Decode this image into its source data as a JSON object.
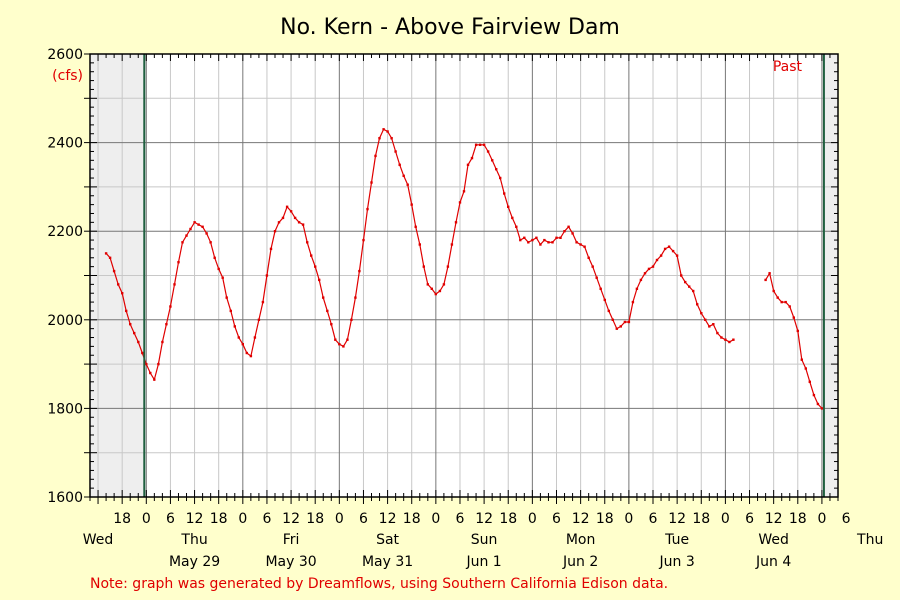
{
  "chart_data": {
    "type": "line",
    "title": "No. Kern - Above Fairview Dam",
    "ylabel": "(cfs)",
    "ylim": [
      1600,
      2600
    ],
    "y_ticks": [
      1600,
      1800,
      2000,
      2200,
      2400,
      2600
    ],
    "grid": true,
    "past_label": "Past",
    "x_tick_labels": [
      "18",
      "0",
      "6",
      "12",
      "18",
      "0",
      "6",
      "12",
      "18",
      "0",
      "6",
      "12",
      "18",
      "0",
      "6",
      "12",
      "18",
      "0",
      "6",
      "12",
      "18",
      "0",
      "6",
      "12",
      "18",
      "0",
      "6",
      "12",
      "18",
      "0",
      "6"
    ],
    "day_labels": [
      "Wed",
      "Thu",
      "Fri",
      "Sat",
      "Sun",
      "Mon",
      "Tue",
      "Wed",
      "Thu"
    ],
    "date_labels": [
      "May 29",
      "May 30",
      "May 31",
      "Jun 1",
      "Jun 2",
      "Jun 3",
      "Jun 4"
    ],
    "series": [
      {
        "color": "#e00000",
        "points": [
          [
            -10,
            2150
          ],
          [
            -9,
            2140
          ],
          [
            -8,
            2110
          ],
          [
            -7,
            2080
          ],
          [
            -6,
            2060
          ],
          [
            -5,
            2020
          ],
          [
            -4,
            1990
          ],
          [
            -3,
            1970
          ],
          [
            -2,
            1950
          ],
          [
            -1,
            1925
          ],
          [
            0,
            1900
          ],
          [
            1,
            1880
          ],
          [
            2,
            1865
          ],
          [
            3,
            1900
          ],
          [
            4,
            1950
          ],
          [
            5,
            1990
          ],
          [
            6,
            2030
          ],
          [
            7,
            2080
          ],
          [
            8,
            2130
          ],
          [
            9,
            2175
          ],
          [
            10,
            2190
          ],
          [
            11,
            2205
          ],
          [
            12,
            2220
          ],
          [
            13,
            2215
          ],
          [
            14,
            2210
          ],
          [
            15,
            2195
          ],
          [
            16,
            2175
          ],
          [
            17,
            2140
          ],
          [
            18,
            2115
          ],
          [
            19,
            2095
          ],
          [
            20,
            2050
          ],
          [
            21,
            2020
          ],
          [
            22,
            1985
          ],
          [
            23,
            1960
          ],
          [
            24,
            1945
          ],
          [
            25,
            1925
          ],
          [
            26,
            1918
          ],
          [
            27,
            1960
          ],
          [
            28,
            2000
          ],
          [
            29,
            2040
          ],
          [
            30,
            2100
          ],
          [
            31,
            2160
          ],
          [
            32,
            2200
          ],
          [
            33,
            2220
          ],
          [
            34,
            2230
          ],
          [
            35,
            2255
          ],
          [
            36,
            2245
          ],
          [
            37,
            2230
          ],
          [
            38,
            2220
          ],
          [
            39,
            2215
          ],
          [
            40,
            2175
          ],
          [
            41,
            2145
          ],
          [
            42,
            2120
          ],
          [
            43,
            2090
          ],
          [
            44,
            2050
          ],
          [
            45,
            2020
          ],
          [
            46,
            1990
          ],
          [
            47,
            1955
          ],
          [
            48,
            1945
          ],
          [
            49,
            1940
          ],
          [
            50,
            1955
          ],
          [
            51,
            2000
          ],
          [
            52,
            2050
          ],
          [
            53,
            2110
          ],
          [
            54,
            2180
          ],
          [
            55,
            2250
          ],
          [
            56,
            2310
          ],
          [
            57,
            2370
          ],
          [
            58,
            2410
          ],
          [
            59,
            2430
          ],
          [
            60,
            2425
          ],
          [
            61,
            2410
          ],
          [
            62,
            2380
          ],
          [
            63,
            2350
          ],
          [
            64,
            2325
          ],
          [
            65,
            2305
          ],
          [
            66,
            2260
          ],
          [
            67,
            2210
          ],
          [
            68,
            2170
          ],
          [
            69,
            2120
          ],
          [
            70,
            2080
          ],
          [
            71,
            2070
          ],
          [
            72,
            2058
          ],
          [
            73,
            2065
          ],
          [
            74,
            2080
          ],
          [
            75,
            2120
          ],
          [
            76,
            2170
          ],
          [
            77,
            2220
          ],
          [
            78,
            2265
          ],
          [
            79,
            2290
          ],
          [
            80,
            2350
          ],
          [
            81,
            2365
          ],
          [
            82,
            2395
          ],
          [
            83,
            2395
          ],
          [
            84,
            2395
          ],
          [
            85,
            2380
          ],
          [
            86,
            2360
          ],
          [
            87,
            2340
          ],
          [
            88,
            2320
          ],
          [
            89,
            2285
          ],
          [
            90,
            2255
          ],
          [
            91,
            2230
          ],
          [
            92,
            2210
          ],
          [
            93,
            2180
          ],
          [
            94,
            2185
          ],
          [
            95,
            2175
          ],
          [
            96,
            2180
          ],
          [
            97,
            2185
          ],
          [
            98,
            2170
          ],
          [
            99,
            2180
          ],
          [
            100,
            2175
          ],
          [
            101,
            2175
          ],
          [
            102,
            2185
          ],
          [
            103,
            2185
          ],
          [
            104,
            2200
          ],
          [
            105,
            2210
          ],
          [
            106,
            2195
          ],
          [
            107,
            2175
          ],
          [
            108,
            2170
          ],
          [
            109,
            2165
          ],
          [
            110,
            2140
          ],
          [
            111,
            2120
          ],
          [
            112,
            2095
          ],
          [
            113,
            2070
          ],
          [
            114,
            2045
          ],
          [
            115,
            2020
          ],
          [
            116,
            2000
          ],
          [
            117,
            1980
          ],
          [
            118,
            1985
          ],
          [
            119,
            1995
          ],
          [
            120,
            1995
          ],
          [
            121,
            2040
          ],
          [
            122,
            2070
          ],
          [
            123,
            2090
          ],
          [
            124,
            2105
          ],
          [
            125,
            2115
          ],
          [
            126,
            2120
          ],
          [
            127,
            2135
          ],
          [
            128,
            2145
          ],
          [
            129,
            2160
          ],
          [
            130,
            2165
          ],
          [
            131,
            2155
          ],
          [
            132,
            2145
          ],
          [
            133,
            2100
          ],
          [
            134,
            2085
          ],
          [
            135,
            2075
          ],
          [
            136,
            2065
          ],
          [
            137,
            2035
          ],
          [
            138,
            2015
          ],
          [
            139,
            2000
          ],
          [
            140,
            1985
          ],
          [
            141,
            1990
          ],
          [
            142,
            1970
          ],
          [
            143,
            1960
          ],
          [
            144,
            1955
          ],
          [
            145,
            1950
          ],
          [
            146,
            1955
          ]
        ]
      },
      {
        "color": "#e00000",
        "points": [
          [
            154,
            2090
          ],
          [
            155,
            2105
          ],
          [
            156,
            2065
          ],
          [
            157,
            2050
          ],
          [
            158,
            2040
          ],
          [
            159,
            2040
          ],
          [
            160,
            2030
          ],
          [
            161,
            2005
          ],
          [
            162,
            1975
          ],
          [
            163,
            1910
          ],
          [
            164,
            1890
          ],
          [
            165,
            1860
          ],
          [
            166,
            1830
          ],
          [
            167,
            1810
          ],
          [
            168,
            1800
          ]
        ]
      }
    ]
  },
  "note": "Note: graph was generated by Dreamflows, using Southern California Edison data."
}
